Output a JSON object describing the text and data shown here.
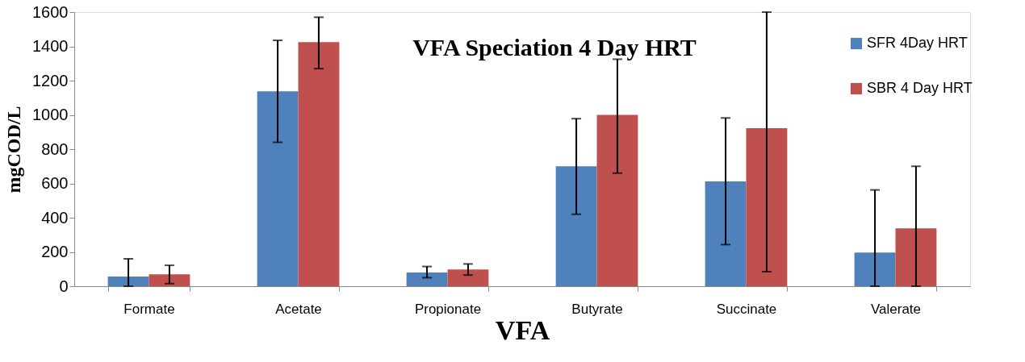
{
  "chart_data": {
    "type": "bar",
    "title": "VFA Speciation 4 Day HRT",
    "xlabel": "VFA",
    "ylabel": "mgCOD/L",
    "categories": [
      "Formate",
      "Acetate",
      "Propionate",
      "Butyrate",
      "Succinate",
      "Valerate"
    ],
    "series": [
      {
        "name": "SFR 4Day HRT",
        "color": "#4f81bd",
        "values": [
          57,
          1138,
          80,
          700,
          612,
          197
        ],
        "errors": [
          [
            0,
            160
          ],
          [
            840,
            1435
          ],
          [
            50,
            115
          ],
          [
            420,
            978
          ],
          [
            243,
            982
          ],
          [
            0,
            562
          ]
        ]
      },
      {
        "name": "SBR 4 Day HRT",
        "color": "#c0504d",
        "values": [
          70,
          1425,
          98,
          1000,
          922,
          338
        ],
        "errors": [
          [
            15,
            122
          ],
          [
            1270,
            1570
          ],
          [
            65,
            130
          ],
          [
            660,
            1325
          ],
          [
            85,
            1600
          ],
          [
            0,
            700
          ]
        ]
      }
    ],
    "ylim": [
      0,
      1600
    ],
    "yticks": [
      0,
      200,
      400,
      600,
      800,
      1000,
      1200,
      1400,
      1600
    ],
    "grid": false,
    "legend": "top right"
  }
}
